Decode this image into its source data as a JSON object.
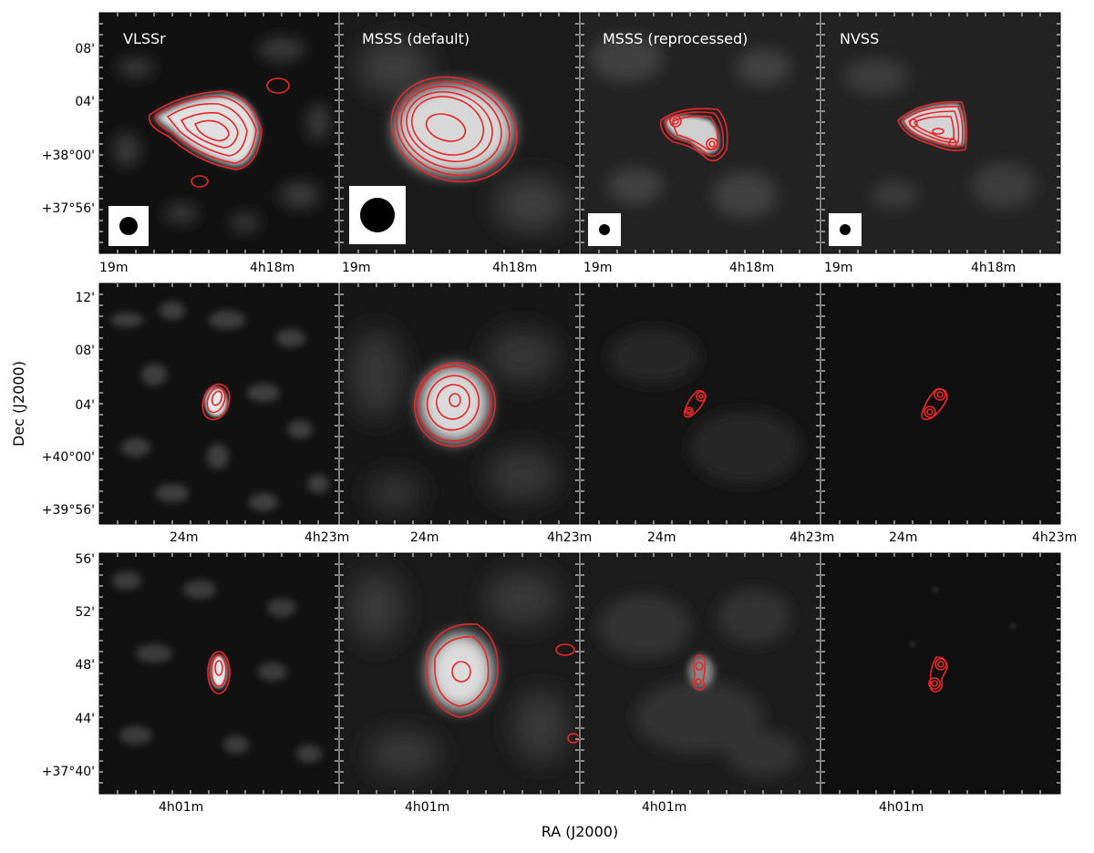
{
  "figure": {
    "xlabel": "RA (J2000)",
    "ylabel": "Dec (J2000)"
  },
  "columns": [
    "VLSSr",
    "MSSS (default)",
    "MSSS (reprocessed)",
    "NVSS"
  ],
  "rows": [
    {
      "dec_ticks": [
        "08'",
        "04'",
        "+38°00'",
        "+37°56'"
      ],
      "ra_ticks": [
        "19m",
        "4h18m"
      ],
      "source_shapes": [
        {
          "kind": "extended-blob",
          "beam": "medium"
        },
        {
          "kind": "large-oval",
          "beam": "large"
        },
        {
          "kind": "double-compact",
          "beam": "small"
        },
        {
          "kind": "double-compact",
          "beam": "small"
        }
      ]
    },
    {
      "dec_ticks": [
        "12'",
        "08'",
        "04'",
        "+40°00'",
        "+39°56'"
      ],
      "ra_ticks": [
        "24m",
        "4h23m"
      ],
      "source_shapes": [
        {
          "kind": "compact"
        },
        {
          "kind": "oval"
        },
        {
          "kind": "double-point"
        },
        {
          "kind": "double-point"
        }
      ]
    },
    {
      "dec_ticks": [
        "56'",
        "52'",
        "48'",
        "44'",
        "+37°40'"
      ],
      "ra_ticks": [
        "4h01m"
      ],
      "source_shapes": [
        {
          "kind": "compact"
        },
        {
          "kind": "oval"
        },
        {
          "kind": "double-point"
        },
        {
          "kind": "double-point"
        }
      ]
    }
  ],
  "colors": {
    "contour": "#e8262a",
    "panel_bg": "#0b0b0b",
    "beam_box": "#ffffff",
    "beam": "#000000"
  }
}
